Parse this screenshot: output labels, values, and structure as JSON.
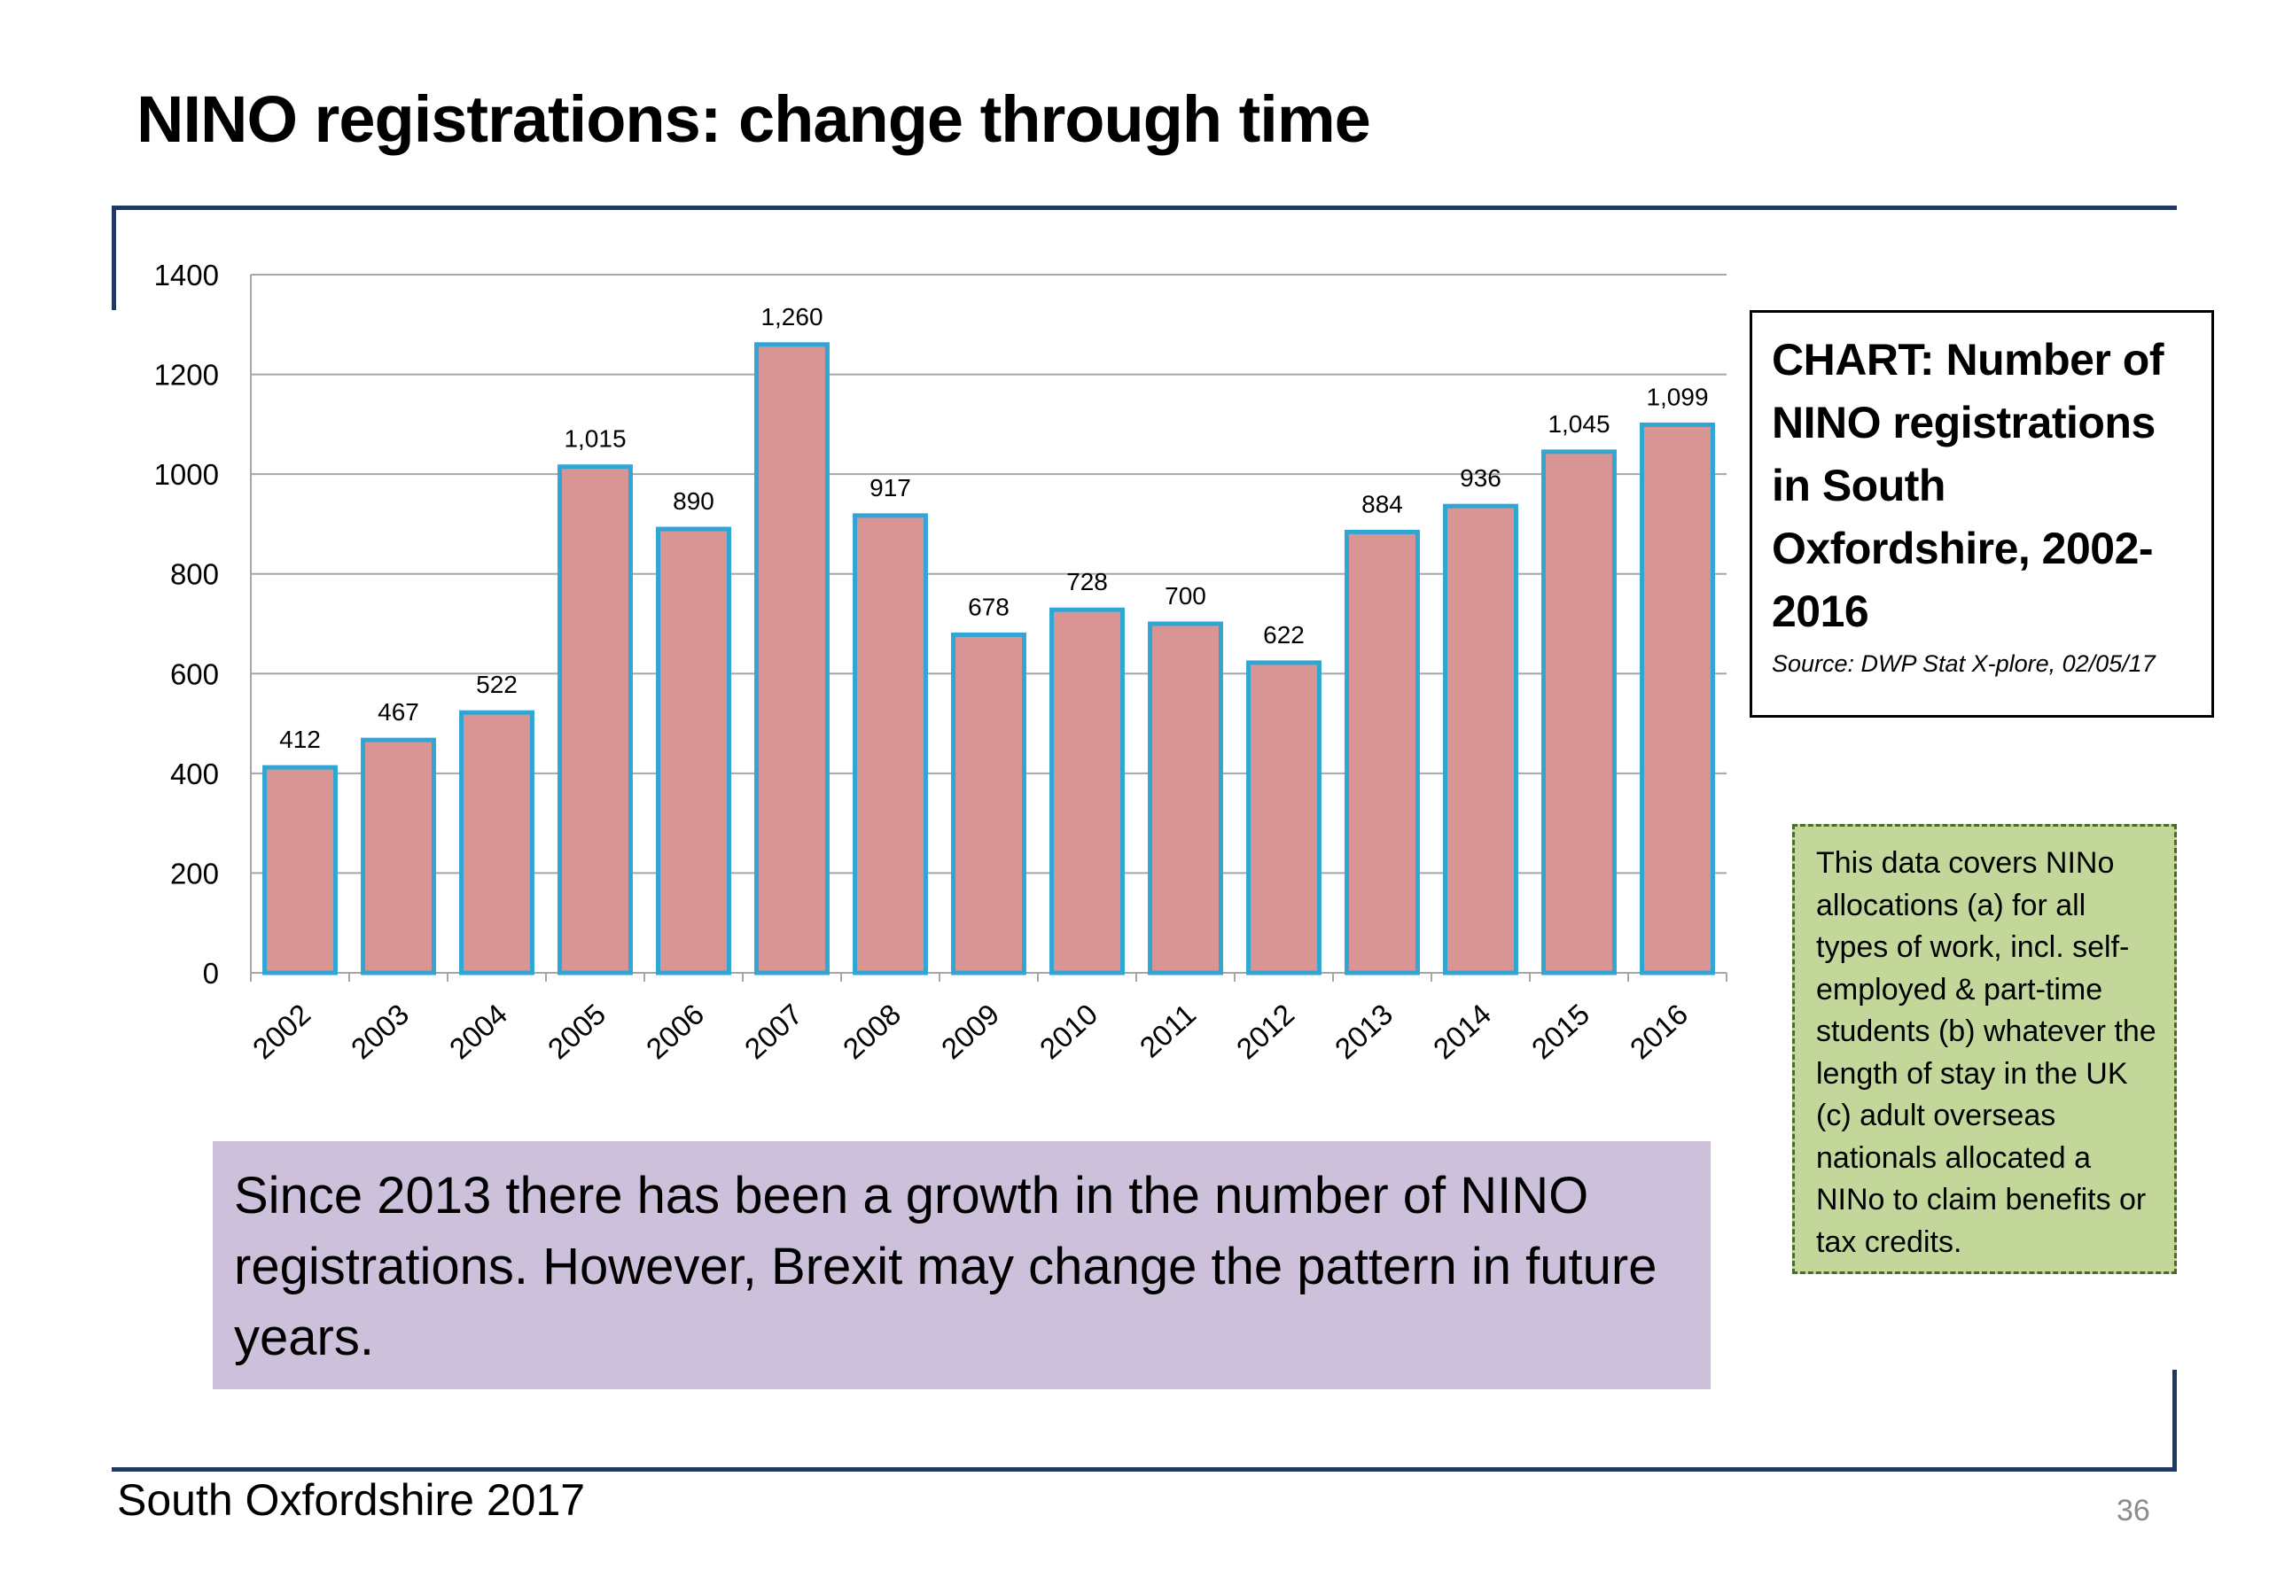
{
  "slide": {
    "title": "NINO registrations: change through time",
    "chart_title": "CHART: Number of NINO registrations in South Oxfordshire, 2002-2016",
    "chart_source": "Source: DWP Stat X-plore, 02/05/17",
    "note": "This data covers NINo allocations (a) for all types of work, incl. self-employed & part-time students (b) whatever the length of stay in the UK (c) adult overseas nationals allocated a NINo to claim benefits or tax credits.",
    "summary": "Since 2013 there has been a growth in the number of NINO registrations. However, Brexit may change the pattern in future years.",
    "footer": "South Oxfordshire 2017",
    "page_number": "36"
  },
  "colors": {
    "bar_fill": "#d99594",
    "bar_stroke": "#31a6d4",
    "rule": "#1f3864",
    "grid": "#a6a6a6",
    "note_bg": "#c4d79b",
    "summary_bg": "#ccc0da"
  },
  "chart_data": {
    "type": "bar",
    "title": "CHART: Number of NINO registrations in South Oxfordshire, 2002-2016",
    "xlabel": "",
    "ylabel": "",
    "categories": [
      "2002",
      "2003",
      "2004",
      "2005",
      "2006",
      "2007",
      "2008",
      "2009",
      "2010",
      "2011",
      "2012",
      "2013",
      "2014",
      "2015",
      "2016"
    ],
    "values": [
      412,
      467,
      522,
      1015,
      890,
      1260,
      917,
      678,
      728,
      700,
      622,
      884,
      936,
      1045,
      1099
    ],
    "data_labels": [
      "412",
      "467",
      "522",
      "1,015",
      "890",
      "1,260",
      "917",
      "678",
      "728",
      "700",
      "622",
      "884",
      "936",
      "1,045",
      "1,099"
    ],
    "ylim": [
      0,
      1400
    ],
    "yticks": [
      0,
      200,
      400,
      600,
      800,
      1000,
      1200,
      1400
    ],
    "grid": true,
    "legend": "none"
  }
}
